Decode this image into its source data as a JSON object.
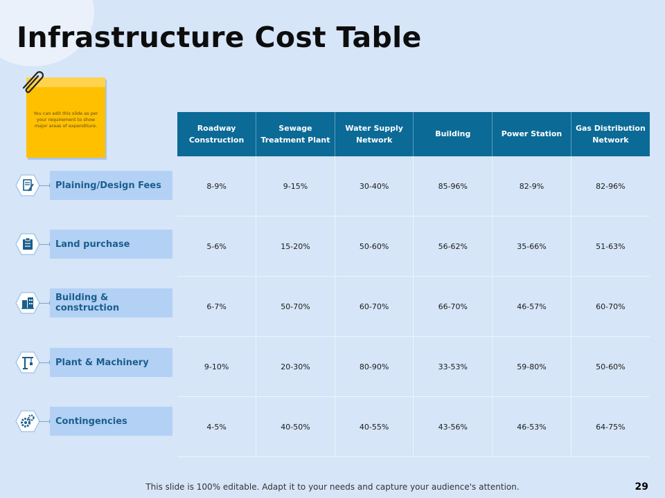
{
  "slide": {
    "title": "Infrastructure Cost Table",
    "note_text": "You can edit this slide as per your requirement to show major areas of expenditure.",
    "footer": "This slide is 100% editable. Adapt it to your needs and capture your audience's attention.",
    "page_number": "29"
  },
  "table": {
    "columns": [
      "Roadway Construction",
      "Sewage Treatment Plant",
      "Water Supply Network",
      "Building",
      "Power Station",
      "Gas Distribution Network"
    ],
    "rows": [
      {
        "label": "Plaining/Design Fees",
        "icon": "document-edit-icon",
        "values": [
          "8-9%",
          "9-15%",
          "30-40%",
          "85-96%",
          "82-9%",
          "82-96%"
        ]
      },
      {
        "label": "Land purchase",
        "icon": "clipboard-icon",
        "values": [
          "5-6%",
          "15-20%",
          "50-60%",
          "56-62%",
          "35-66%",
          "51-63%"
        ]
      },
      {
        "label": "Building & construction",
        "icon": "building-icon",
        "values": [
          "6-7%",
          "50-70%",
          "60-70%",
          "66-70%",
          "46-57%",
          "60-70%"
        ]
      },
      {
        "label": "Plant & Machinery",
        "icon": "crane-icon",
        "values": [
          "9-10%",
          "20-30%",
          "80-90%",
          "33-53%",
          "59-80%",
          "50-60%"
        ]
      },
      {
        "label": "Contingencies",
        "icon": "gears-icon",
        "values": [
          "4-5%",
          "40-50%",
          "40-55%",
          "43-56%",
          "46-53%",
          "64-75%"
        ]
      }
    ]
  },
  "colors": {
    "background": "#d6e5f7",
    "header": "#0b6a96",
    "label_box": "#b3d1f4",
    "label_text": "#1a5e8e",
    "note": "#ffc000"
  }
}
